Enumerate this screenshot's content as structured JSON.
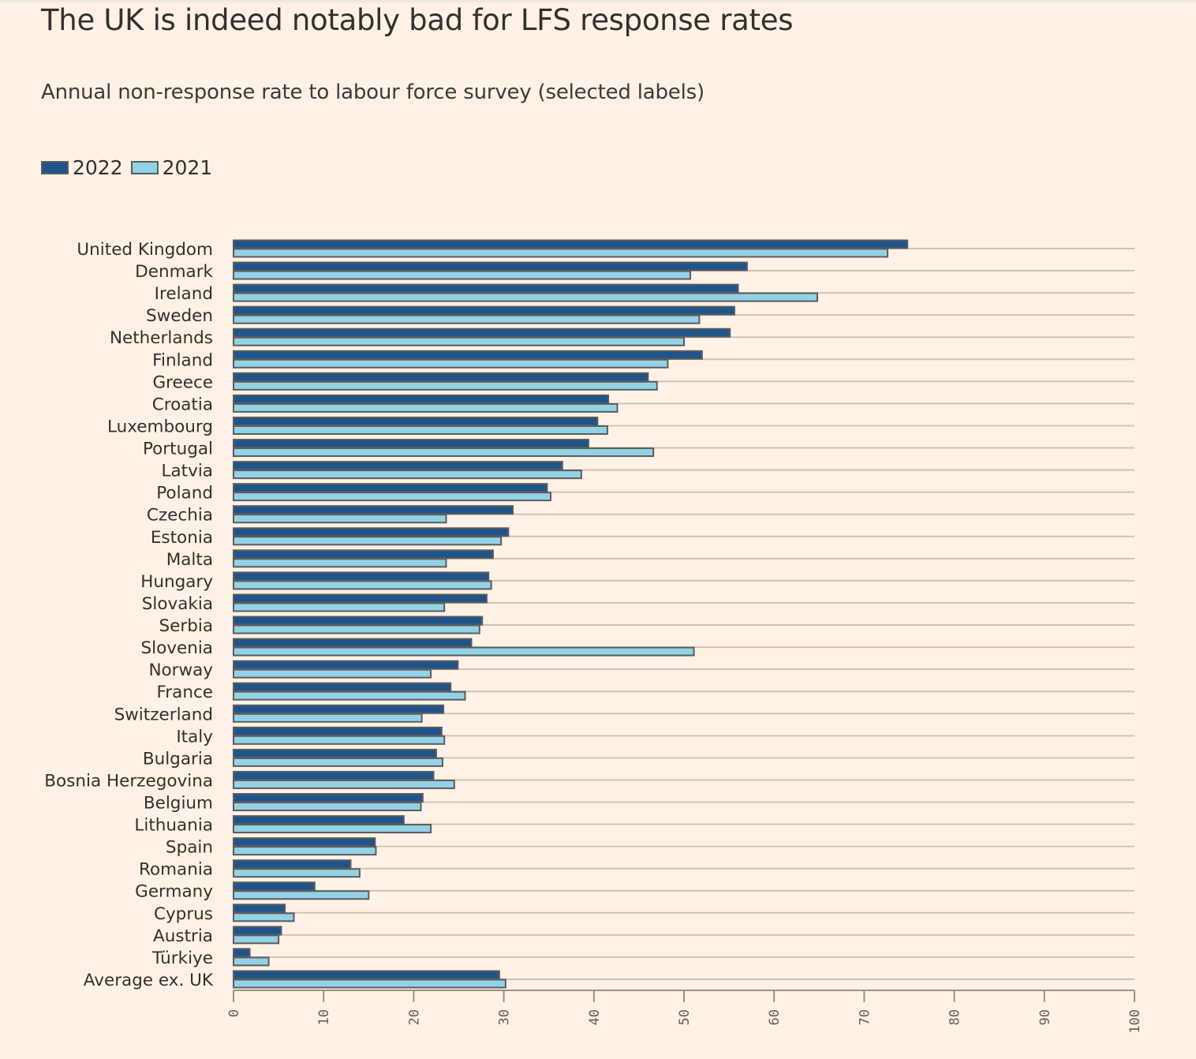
{
  "page": {
    "title": "The UK is indeed notably bad for LFS response rates",
    "subtitle": "Annual non-response rate to labour force survey (selected labels)"
  },
  "colors": {
    "background": "#fff1e5",
    "series_2022": "#1f548a",
    "series_2021": "#93d2e6",
    "bar_outline": "#5c5c5c",
    "gridline": "#cfc3b6",
    "axis": "#9a918a"
  },
  "chart_data": {
    "type": "bar",
    "orientation": "horizontal",
    "title": "The UK is indeed notably bad for LFS response rates",
    "subtitle": "Annual non-response rate to labour force survey (selected labels)",
    "xlabel": "",
    "ylabel": "",
    "xlim": [
      0,
      100
    ],
    "xticks": [
      0,
      10,
      20,
      30,
      40,
      50,
      60,
      70,
      80,
      90,
      100
    ],
    "grid": true,
    "legend_position": "top-left",
    "categories": [
      "United Kingdom",
      "Denmark",
      "Ireland",
      "Sweden",
      "Netherlands",
      "Finland",
      "Greece",
      "Croatia",
      "Luxembourg",
      "Portugal",
      "Latvia",
      "Poland",
      "Czechia",
      "Estonia",
      "Malta",
      "Hungary",
      "Slovakia",
      "Serbia",
      "Slovenia",
      "Norway",
      "France",
      "Switzerland",
      "Italy",
      "Bulgaria",
      "Bosnia Herzegovina",
      "Belgium",
      "Lithuania",
      "Spain",
      "Romania",
      "Germany",
      "Cyprus",
      "Austria",
      "Türkiye",
      "Average ex. UK"
    ],
    "series": [
      {
        "name": "2022",
        "values": [
          74.8,
          57.0,
          56.0,
          55.6,
          55.1,
          52.0,
          46.0,
          41.6,
          40.4,
          39.4,
          36.5,
          34.8,
          31.0,
          30.5,
          28.8,
          28.3,
          28.1,
          27.6,
          26.4,
          24.9,
          24.1,
          23.3,
          23.1,
          22.5,
          22.2,
          21.0,
          18.9,
          15.7,
          13.0,
          9.0,
          5.7,
          5.3,
          1.8,
          29.5
        ]
      },
      {
        "name": "2021",
        "values": [
          72.6,
          50.7,
          64.8,
          51.7,
          50.0,
          48.2,
          47.0,
          42.6,
          41.5,
          46.6,
          38.6,
          35.2,
          23.6,
          29.7,
          23.6,
          28.6,
          23.4,
          27.3,
          51.1,
          21.9,
          25.7,
          20.9,
          23.4,
          23.2,
          24.5,
          20.8,
          21.9,
          15.8,
          14.0,
          15.0,
          6.7,
          5.0,
          3.9,
          30.2
        ]
      }
    ]
  }
}
